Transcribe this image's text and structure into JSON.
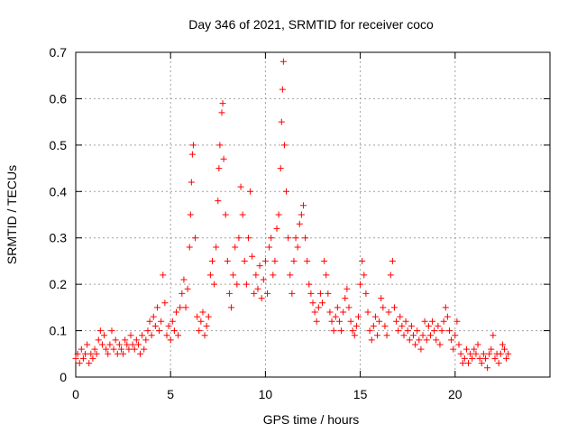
{
  "chart_data": {
    "type": "scatter",
    "title": "Day 346 of 2021, SRMTID for receiver coco",
    "xlabel": "GPS time / hours",
    "ylabel": "SRMTID / TECUs",
    "xlim": [
      0,
      25
    ],
    "ylim": [
      0,
      0.7
    ],
    "x_ticks": [
      0,
      5,
      10,
      15,
      20
    ],
    "y_ticks": [
      0,
      0.1,
      0.2,
      0.3,
      0.4,
      0.5,
      0.6,
      0.7
    ],
    "x_tick_labels": [
      "0",
      "5",
      "10",
      "15",
      "20"
    ],
    "y_tick_labels": [
      "0",
      "0.1",
      "0.2",
      "0.3",
      "0.4",
      "0.5",
      "0.6",
      "0.7"
    ],
    "grid": true,
    "marker": "+",
    "marker_color": "#ff0000",
    "series": [
      {
        "name": "SRMTID",
        "points": [
          [
            0.0,
            0.04
          ],
          [
            0.1,
            0.05
          ],
          [
            0.2,
            0.03
          ],
          [
            0.3,
            0.06
          ],
          [
            0.4,
            0.04
          ],
          [
            0.5,
            0.05
          ],
          [
            0.6,
            0.07
          ],
          [
            0.7,
            0.03
          ],
          [
            0.8,
            0.05
          ],
          [
            0.9,
            0.04
          ],
          [
            1.0,
            0.06
          ],
          [
            1.1,
            0.05
          ],
          [
            1.2,
            0.08
          ],
          [
            1.3,
            0.1
          ],
          [
            1.4,
            0.07
          ],
          [
            1.5,
            0.09
          ],
          [
            1.6,
            0.06
          ],
          [
            1.7,
            0.05
          ],
          [
            1.8,
            0.07
          ],
          [
            1.9,
            0.1
          ],
          [
            2.0,
            0.06
          ],
          [
            2.1,
            0.08
          ],
          [
            2.2,
            0.05
          ],
          [
            2.3,
            0.07
          ],
          [
            2.4,
            0.06
          ],
          [
            2.5,
            0.05
          ],
          [
            2.6,
            0.08
          ],
          [
            2.7,
            0.07
          ],
          [
            2.8,
            0.06
          ],
          [
            2.9,
            0.09
          ],
          [
            3.0,
            0.07
          ],
          [
            3.1,
            0.06
          ],
          [
            3.2,
            0.08
          ],
          [
            3.3,
            0.07
          ],
          [
            3.4,
            0.05
          ],
          [
            3.5,
            0.09
          ],
          [
            3.6,
            0.06
          ],
          [
            3.7,
            0.08
          ],
          [
            3.8,
            0.1
          ],
          [
            3.9,
            0.12
          ],
          [
            4.0,
            0.09
          ],
          [
            4.1,
            0.13
          ],
          [
            4.2,
            0.11
          ],
          [
            4.3,
            0.15
          ],
          [
            4.4,
            0.1
          ],
          [
            4.5,
            0.12
          ],
          [
            4.6,
            0.22
          ],
          [
            4.7,
            0.16
          ],
          [
            4.8,
            0.09
          ],
          [
            4.9,
            0.11
          ],
          [
            5.0,
            0.08
          ],
          [
            5.1,
            0.12
          ],
          [
            5.2,
            0.1
          ],
          [
            5.3,
            0.14
          ],
          [
            5.4,
            0.09
          ],
          [
            5.5,
            0.15
          ],
          [
            5.6,
            0.18
          ],
          [
            5.7,
            0.21
          ],
          [
            5.8,
            0.15
          ],
          [
            5.9,
            0.19
          ],
          [
            6.0,
            0.28
          ],
          [
            6.05,
            0.35
          ],
          [
            6.1,
            0.42
          ],
          [
            6.15,
            0.48
          ],
          [
            6.2,
            0.5
          ],
          [
            6.3,
            0.3
          ],
          [
            6.4,
            0.13
          ],
          [
            6.5,
            0.1
          ],
          [
            6.6,
            0.12
          ],
          [
            6.7,
            0.14
          ],
          [
            6.8,
            0.09
          ],
          [
            6.9,
            0.11
          ],
          [
            7.0,
            0.13
          ],
          [
            7.1,
            0.22
          ],
          [
            7.2,
            0.25
          ],
          [
            7.3,
            0.2
          ],
          [
            7.4,
            0.28
          ],
          [
            7.5,
            0.38
          ],
          [
            7.55,
            0.45
          ],
          [
            7.6,
            0.5
          ],
          [
            7.7,
            0.57
          ],
          [
            7.75,
            0.59
          ],
          [
            7.8,
            0.47
          ],
          [
            7.9,
            0.35
          ],
          [
            8.0,
            0.25
          ],
          [
            8.1,
            0.18
          ],
          [
            8.2,
            0.15
          ],
          [
            8.3,
            0.22
          ],
          [
            8.4,
            0.28
          ],
          [
            8.5,
            0.2
          ],
          [
            8.6,
            0.3
          ],
          [
            8.7,
            0.41
          ],
          [
            8.8,
            0.35
          ],
          [
            8.9,
            0.25
          ],
          [
            9.0,
            0.2
          ],
          [
            9.1,
            0.3
          ],
          [
            9.2,
            0.4
          ],
          [
            9.3,
            0.26
          ],
          [
            9.4,
            0.18
          ],
          [
            9.5,
            0.22
          ],
          [
            9.6,
            0.19
          ],
          [
            9.7,
            0.24
          ],
          [
            9.8,
            0.17
          ],
          [
            9.9,
            0.21
          ],
          [
            10.0,
            0.25
          ],
          [
            10.1,
            0.18
          ],
          [
            10.2,
            0.28
          ],
          [
            10.3,
            0.3
          ],
          [
            10.4,
            0.22
          ],
          [
            10.5,
            0.25
          ],
          [
            10.6,
            0.32
          ],
          [
            10.7,
            0.35
          ],
          [
            10.8,
            0.45
          ],
          [
            10.85,
            0.55
          ],
          [
            10.9,
            0.62
          ],
          [
            10.95,
            0.68
          ],
          [
            11.0,
            0.5
          ],
          [
            11.1,
            0.4
          ],
          [
            11.2,
            0.3
          ],
          [
            11.3,
            0.22
          ],
          [
            11.4,
            0.18
          ],
          [
            11.5,
            0.25
          ],
          [
            11.6,
            0.3
          ],
          [
            11.7,
            0.28
          ],
          [
            11.8,
            0.33
          ],
          [
            11.9,
            0.35
          ],
          [
            12.0,
            0.37
          ],
          [
            12.1,
            0.3
          ],
          [
            12.2,
            0.25
          ],
          [
            12.3,
            0.2
          ],
          [
            12.4,
            0.18
          ],
          [
            12.5,
            0.16
          ],
          [
            12.6,
            0.14
          ],
          [
            12.7,
            0.12
          ],
          [
            12.8,
            0.15
          ],
          [
            12.9,
            0.18
          ],
          [
            13.0,
            0.16
          ],
          [
            13.1,
            0.25
          ],
          [
            13.2,
            0.22
          ],
          [
            13.3,
            0.18
          ],
          [
            13.4,
            0.14
          ],
          [
            13.5,
            0.12
          ],
          [
            13.6,
            0.1
          ],
          [
            13.7,
            0.13
          ],
          [
            13.8,
            0.15
          ],
          [
            13.9,
            0.12
          ],
          [
            14.0,
            0.1
          ],
          [
            14.1,
            0.14
          ],
          [
            14.2,
            0.17
          ],
          [
            14.3,
            0.19
          ],
          [
            14.4,
            0.15
          ],
          [
            14.5,
            0.12
          ],
          [
            14.6,
            0.1
          ],
          [
            14.7,
            0.09
          ],
          [
            14.8,
            0.11
          ],
          [
            14.9,
            0.13
          ],
          [
            15.0,
            0.2
          ],
          [
            15.1,
            0.25
          ],
          [
            15.2,
            0.22
          ],
          [
            15.3,
            0.18
          ],
          [
            15.4,
            0.14
          ],
          [
            15.5,
            0.1
          ],
          [
            15.6,
            0.08
          ],
          [
            15.7,
            0.11
          ],
          [
            15.8,
            0.13
          ],
          [
            15.9,
            0.09
          ],
          [
            16.0,
            0.12
          ],
          [
            16.1,
            0.17
          ],
          [
            16.2,
            0.15
          ],
          [
            16.3,
            0.11
          ],
          [
            16.4,
            0.09
          ],
          [
            16.5,
            0.14
          ],
          [
            16.6,
            0.22
          ],
          [
            16.7,
            0.25
          ],
          [
            16.8,
            0.15
          ],
          [
            16.9,
            0.12
          ],
          [
            17.0,
            0.1
          ],
          [
            17.1,
            0.13
          ],
          [
            17.2,
            0.11
          ],
          [
            17.3,
            0.09
          ],
          [
            17.4,
            0.12
          ],
          [
            17.5,
            0.1
          ],
          [
            17.6,
            0.08
          ],
          [
            17.7,
            0.11
          ],
          [
            17.8,
            0.09
          ],
          [
            17.9,
            0.07
          ],
          [
            18.0,
            0.1
          ],
          [
            18.1,
            0.08
          ],
          [
            18.2,
            0.06
          ],
          [
            18.3,
            0.09
          ],
          [
            18.4,
            0.12
          ],
          [
            18.5,
            0.08
          ],
          [
            18.6,
            0.11
          ],
          [
            18.7,
            0.09
          ],
          [
            18.8,
            0.12
          ],
          [
            18.9,
            0.1
          ],
          [
            19.0,
            0.08
          ],
          [
            19.1,
            0.11
          ],
          [
            19.2,
            0.07
          ],
          [
            19.3,
            0.1
          ],
          [
            19.4,
            0.12
          ],
          [
            19.5,
            0.15
          ],
          [
            19.6,
            0.13
          ],
          [
            19.7,
            0.1
          ],
          [
            19.8,
            0.08
          ],
          [
            19.9,
            0.06
          ],
          [
            20.0,
            0.09
          ],
          [
            20.1,
            0.12
          ],
          [
            20.2,
            0.07
          ],
          [
            20.3,
            0.05
          ],
          [
            20.4,
            0.03
          ],
          [
            20.5,
            0.04
          ],
          [
            20.6,
            0.06
          ],
          [
            20.7,
            0.03
          ],
          [
            20.8,
            0.05
          ],
          [
            20.9,
            0.04
          ],
          [
            21.0,
            0.06
          ],
          [
            21.1,
            0.05
          ],
          [
            21.2,
            0.07
          ],
          [
            21.3,
            0.04
          ],
          [
            21.4,
            0.03
          ],
          [
            21.5,
            0.05
          ],
          [
            21.6,
            0.04
          ],
          [
            21.7,
            0.02
          ],
          [
            21.8,
            0.05
          ],
          [
            21.9,
            0.06
          ],
          [
            22.0,
            0.09
          ],
          [
            22.1,
            0.04
          ],
          [
            22.2,
            0.05
          ],
          [
            22.3,
            0.03
          ],
          [
            22.4,
            0.05
          ],
          [
            22.5,
            0.07
          ],
          [
            22.6,
            0.06
          ],
          [
            22.7,
            0.04
          ],
          [
            22.8,
            0.05
          ]
        ]
      }
    ]
  }
}
